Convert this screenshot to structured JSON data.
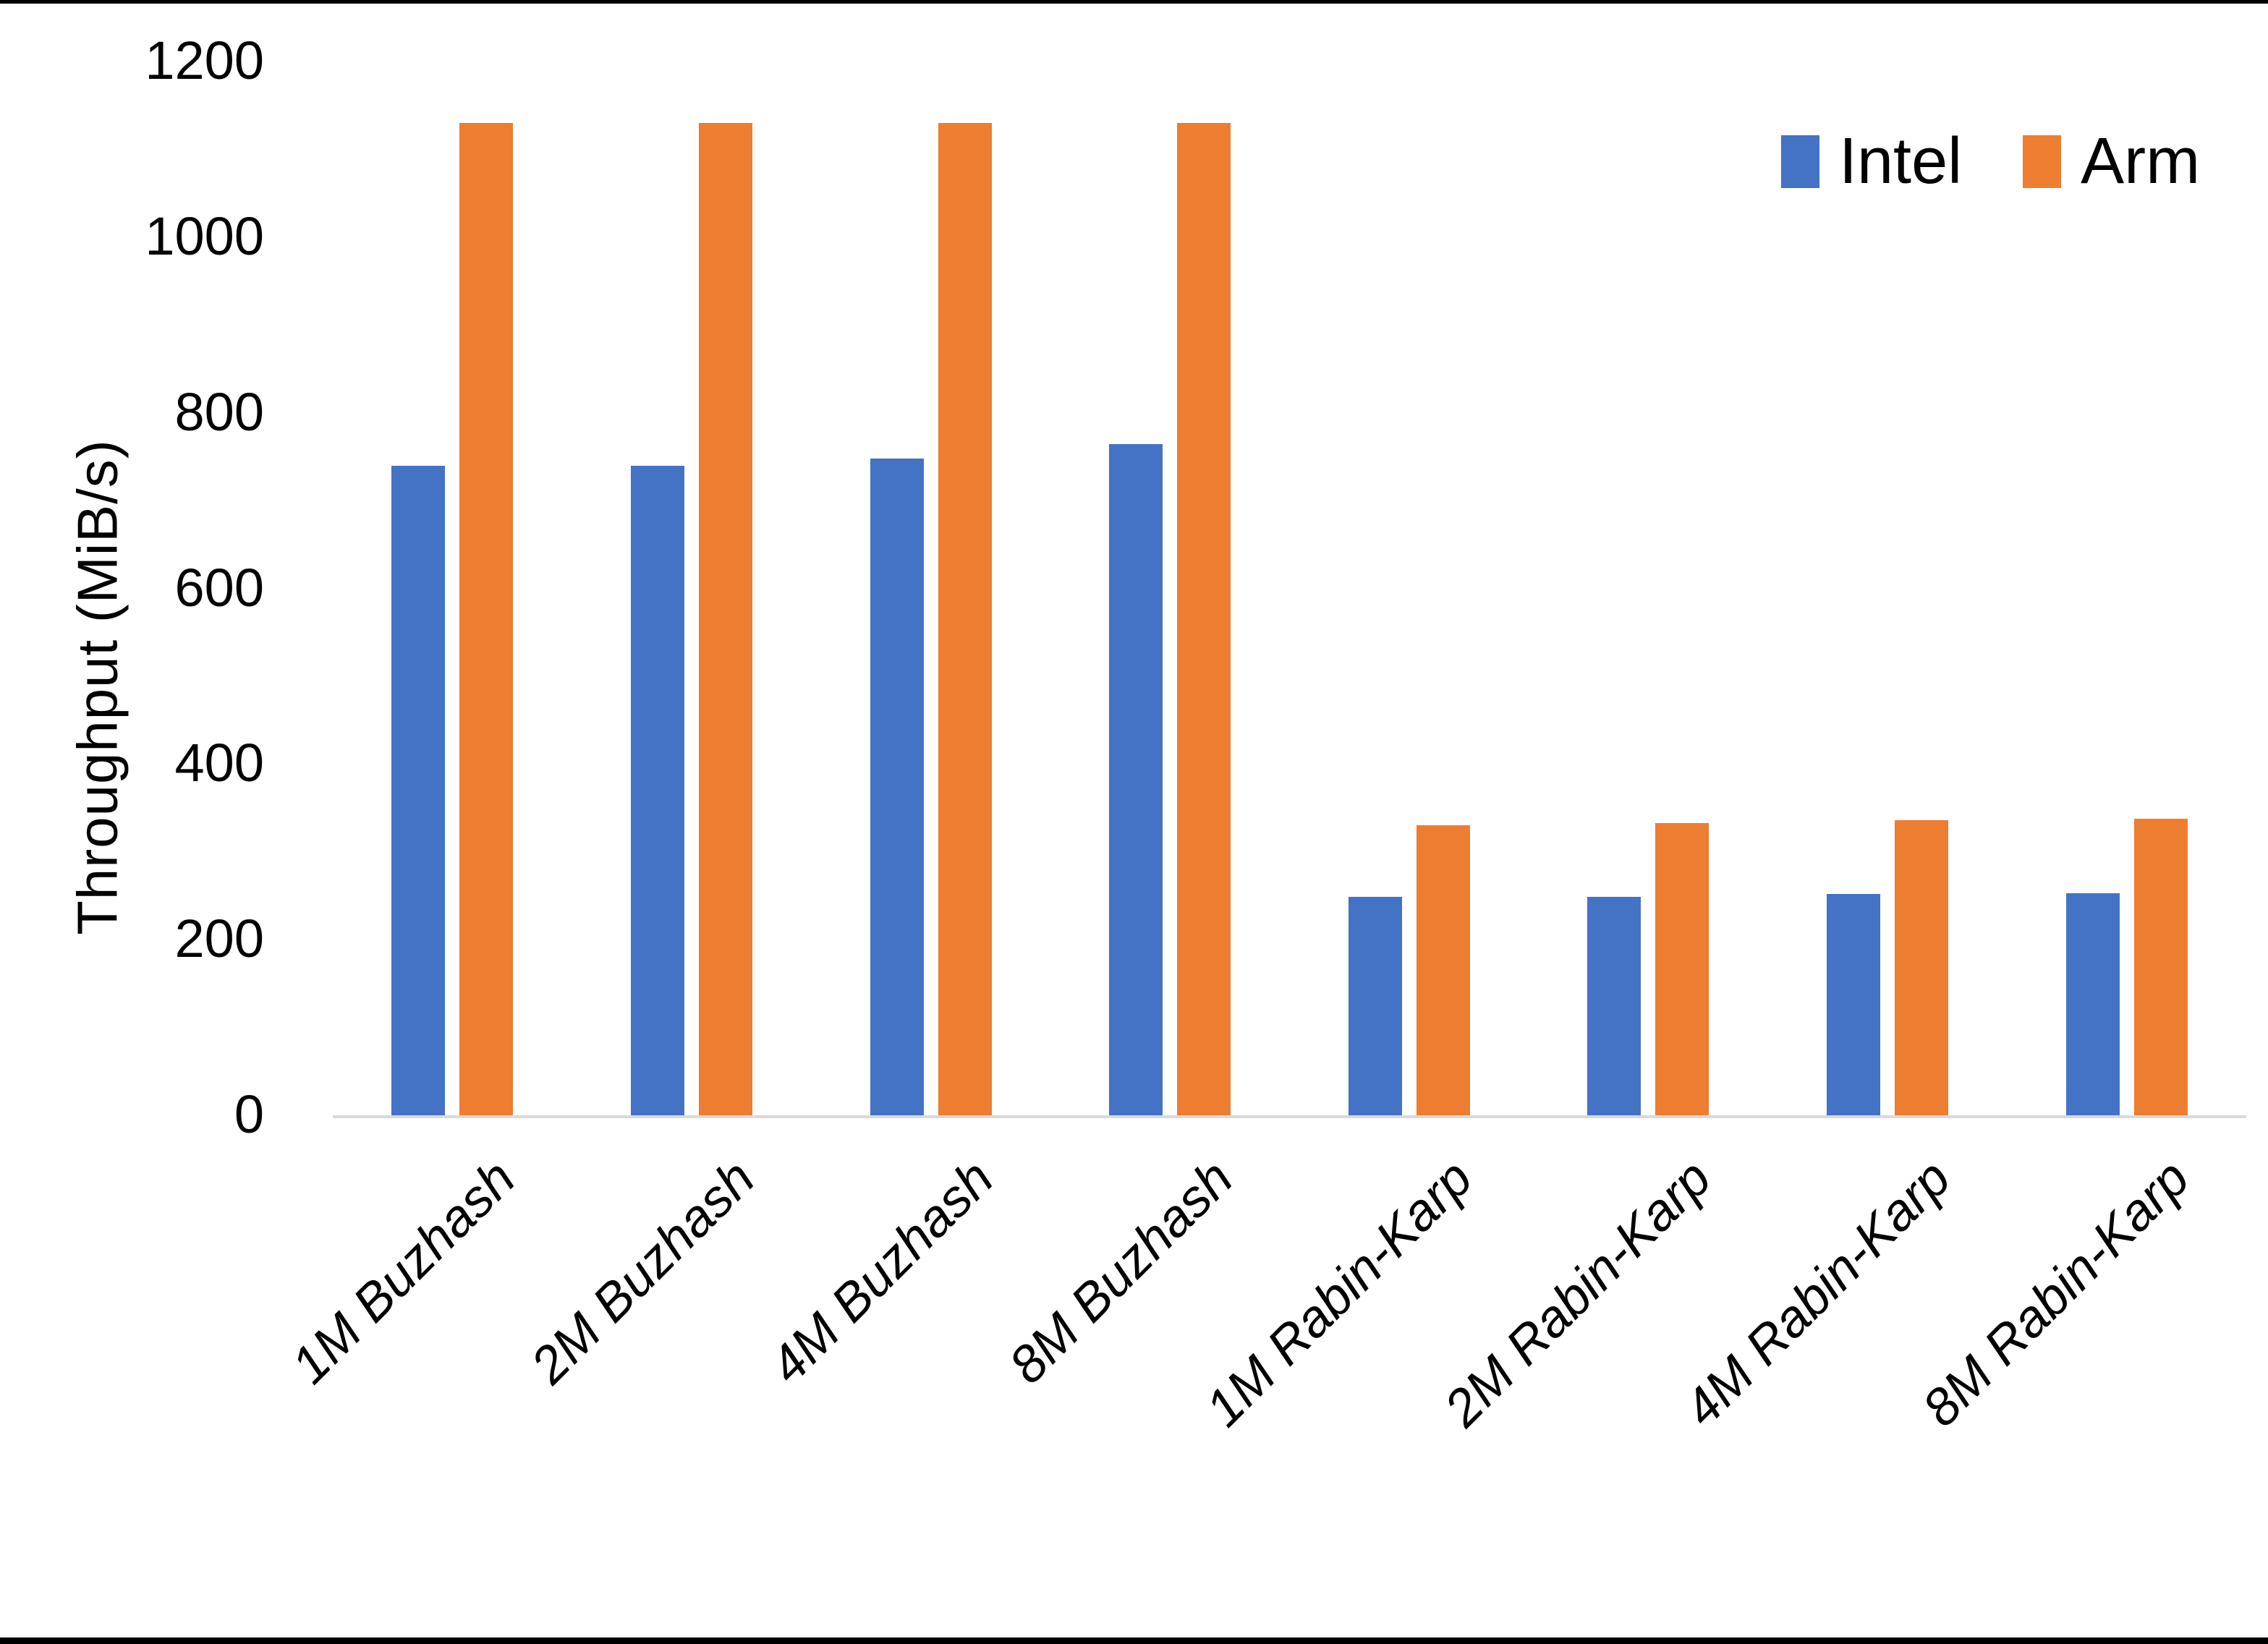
{
  "chart_data": {
    "type": "bar",
    "title": "",
    "ylabel": "Throughput (MiB/s)",
    "xlabel": "",
    "ylim": [
      0,
      1200
    ],
    "yticks": [
      0,
      200,
      400,
      600,
      800,
      1000,
      1200
    ],
    "grid": false,
    "legend_position": "top-right",
    "categories": [
      "1M Buzhash",
      "2M Buzhash",
      "4M Buzhash",
      "8M Buzhash",
      "1M Rabin-Karp",
      "2M Rabin-Karp",
      "4M Rabin-Karp",
      "8M Rabin-Karp"
    ],
    "series": [
      {
        "name": "Intel",
        "color": "#4472C4",
        "values": [
          740,
          740,
          748,
          764,
          249,
          249,
          252,
          253
        ]
      },
      {
        "name": "Arm",
        "color": "#ED7D31",
        "values": [
          1130,
          1130,
          1130,
          1130,
          330,
          333,
          336,
          338
        ]
      }
    ]
  }
}
